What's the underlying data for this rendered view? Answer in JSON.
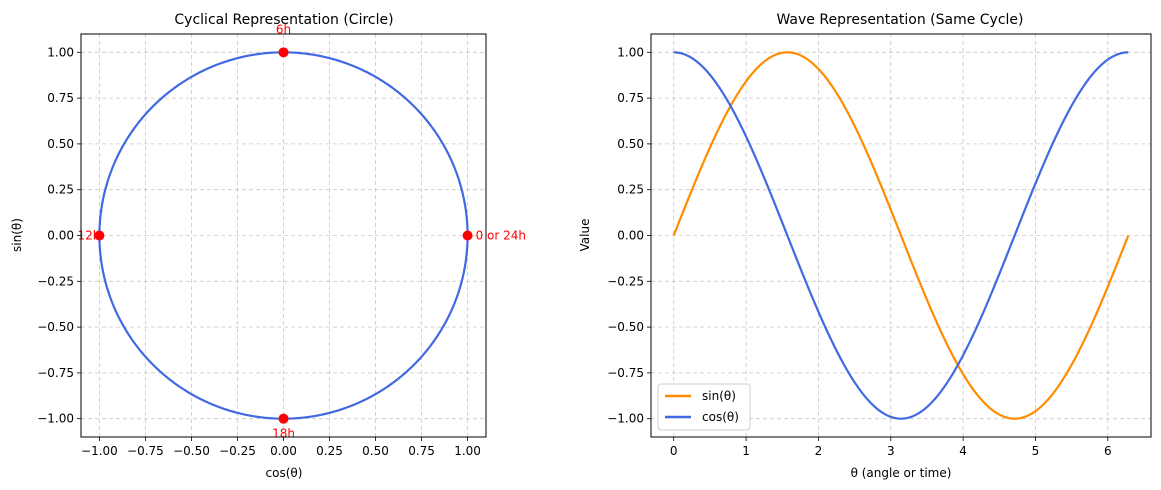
{
  "chart_data": [
    {
      "type": "line",
      "title": "Cyclical Representation (Circle)",
      "xlabel": "cos(θ)",
      "ylabel": "sin(θ)",
      "xlim": [
        -1.1,
        1.1
      ],
      "ylim": [
        -1.1,
        1.1
      ],
      "xticks": [
        -1.0,
        -0.75,
        -0.5,
        -0.25,
        0.0,
        0.25,
        0.5,
        0.75,
        1.0
      ],
      "yticks": [
        -1.0,
        -0.75,
        -0.5,
        -0.25,
        0.0,
        0.25,
        0.5,
        0.75,
        1.0
      ],
      "xtick_labels": [
        "−1.00",
        "−0.75",
        "−0.50",
        "−0.25",
        "0.00",
        "0.25",
        "0.50",
        "0.75",
        "1.00"
      ],
      "ytick_labels": [
        "−1.00",
        "−0.75",
        "−0.50",
        "−0.25",
        "0.00",
        "0.25",
        "0.50",
        "0.75",
        "1.00"
      ],
      "grid": true,
      "series": [
        {
          "kind": "parametric-circle",
          "radius": 1,
          "color": "#4169e1"
        }
      ],
      "points": [
        {
          "x": 1,
          "y": 0,
          "label": "0 or 24h",
          "anchor": "right"
        },
        {
          "x": 0,
          "y": 1,
          "label": "6h",
          "anchor": "above"
        },
        {
          "x": -1,
          "y": 0,
          "label": "12h",
          "anchor": "left"
        },
        {
          "x": 0,
          "y": -1,
          "label": "18h",
          "anchor": "below"
        }
      ],
      "point_color": "#ff0000"
    },
    {
      "type": "line",
      "title": "Wave Representation (Same Cycle)",
      "xlabel": "θ (angle or time)",
      "ylabel": "Value",
      "xlim": [
        -0.314,
        6.597
      ],
      "ylim": [
        -1.1,
        1.1
      ],
      "xticks": [
        0,
        1,
        2,
        3,
        4,
        5,
        6
      ],
      "yticks": [
        -1.0,
        -0.75,
        -0.5,
        -0.25,
        0.0,
        0.25,
        0.5,
        0.75,
        1.0
      ],
      "xtick_labels": [
        "0",
        "1",
        "2",
        "3",
        "4",
        "5",
        "6"
      ],
      "ytick_labels": [
        "−1.00",
        "−0.75",
        "−0.50",
        "−0.25",
        "0.00",
        "0.25",
        "0.50",
        "0.75",
        "1.00"
      ],
      "grid": true,
      "legend": "lower-left",
      "x_range": [
        0,
        6.283
      ],
      "series": [
        {
          "name": "sin(θ)",
          "func": "sin",
          "color": "#ff8c00"
        },
        {
          "name": "cos(θ)",
          "func": "cos",
          "color": "#4169e1"
        }
      ]
    }
  ]
}
